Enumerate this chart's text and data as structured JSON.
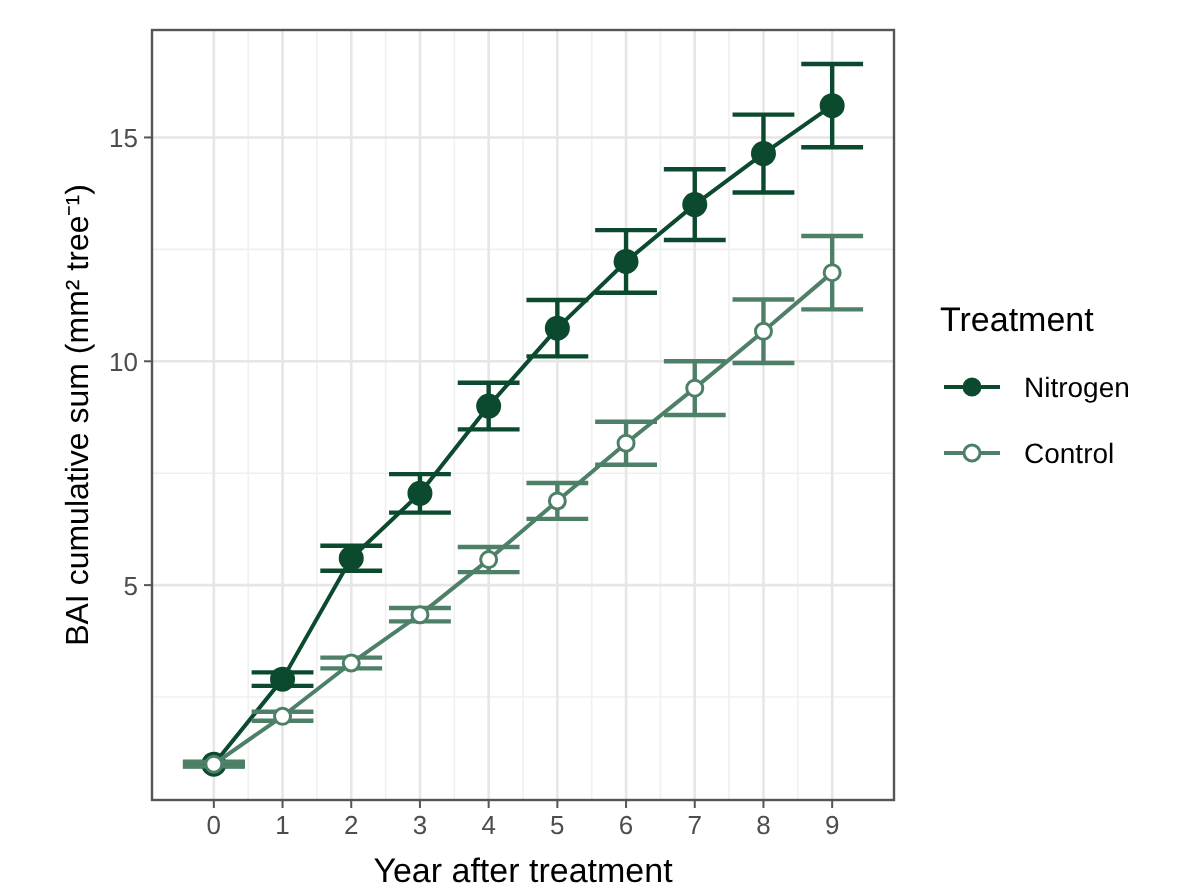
{
  "chart_data": {
    "type": "line",
    "xlabel": "Year after treatment",
    "ylabel": "BAI cumulative sum (mm² tree⁻¹)",
    "legend_title": "Treatment",
    "x": [
      0,
      1,
      2,
      3,
      4,
      5,
      6,
      7,
      8,
      9
    ],
    "xlim": [
      -0.9,
      9.9
    ],
    "xticks": [
      0,
      1,
      2,
      3,
      4,
      5,
      6,
      7,
      8,
      9
    ],
    "ylim": [
      0.2,
      17.4
    ],
    "yticks": [
      5,
      10,
      15
    ],
    "grid": true,
    "legend": "right",
    "marker": "circle",
    "line_style": "solid",
    "series": [
      {
        "name": "Nitrogen",
        "color": "#0b4a2e",
        "values": [
          1.0,
          2.9,
          5.6,
          7.05,
          9.0,
          10.74,
          12.23,
          13.5,
          14.64,
          15.71
        ],
        "errors": [
          0.05,
          0.15,
          0.28,
          0.43,
          0.52,
          0.63,
          0.7,
          0.79,
          0.87,
          0.93
        ]
      },
      {
        "name": "Control",
        "color": "#4e8068",
        "values": [
          1.0,
          2.07,
          3.26,
          4.34,
          5.57,
          6.88,
          8.17,
          9.4,
          10.67,
          11.98
        ],
        "errors": [
          0.05,
          0.1,
          0.12,
          0.15,
          0.28,
          0.4,
          0.48,
          0.6,
          0.71,
          0.82
        ]
      }
    ]
  }
}
